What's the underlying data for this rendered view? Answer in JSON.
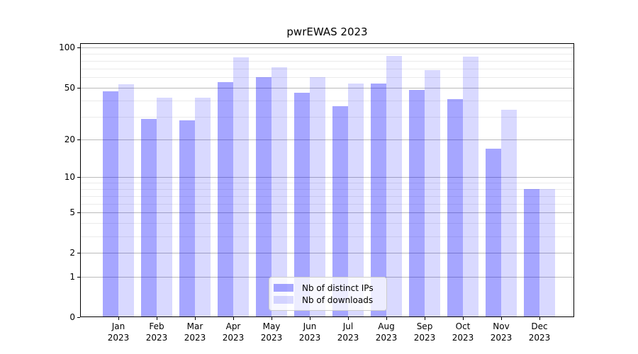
{
  "title": "pwrEWAS 2023",
  "legend": {
    "items": [
      {
        "label": "Nb of distinct IPs",
        "color": "#0000ff",
        "alpha": 0.35,
        "color_on_white": "#a6a6ff"
      },
      {
        "label": "Nb of downloads",
        "color": "#0000ff",
        "alpha": 0.15,
        "color_on_white": "#d9d9ff"
      }
    ],
    "position": "lower center"
  },
  "chart_data": {
    "type": "bar",
    "title": "pwrEWAS 2023",
    "xlabel": "",
    "ylabel": "",
    "scale": "log1p",
    "year": "2023",
    "categories": [
      "Jan",
      "Feb",
      "Mar",
      "Apr",
      "May",
      "Jun",
      "Jul",
      "Aug",
      "Sep",
      "Oct",
      "Nov",
      "Dec"
    ],
    "series": [
      {
        "name": "Nb of distinct IPs",
        "color": "#0000ff",
        "alpha": 0.35,
        "values": [
          47,
          29,
          28,
          55,
          60,
          46,
          36,
          54,
          48,
          41,
          17,
          8
        ]
      },
      {
        "name": "Nb of downloads",
        "color": "#0000ff",
        "alpha": 0.15,
        "values": [
          53,
          42,
          42,
          85,
          71,
          60,
          54,
          87,
          68,
          86,
          34,
          8
        ]
      }
    ],
    "yticks": [
      0,
      1,
      2,
      5,
      10,
      20,
      50,
      100
    ],
    "minor_yticks": [
      3,
      4,
      6,
      7,
      8,
      9,
      30,
      40,
      60,
      70,
      80,
      90
    ],
    "ylim": [
      0,
      108
    ],
    "grid": "both",
    "legend_position": "lower center"
  }
}
